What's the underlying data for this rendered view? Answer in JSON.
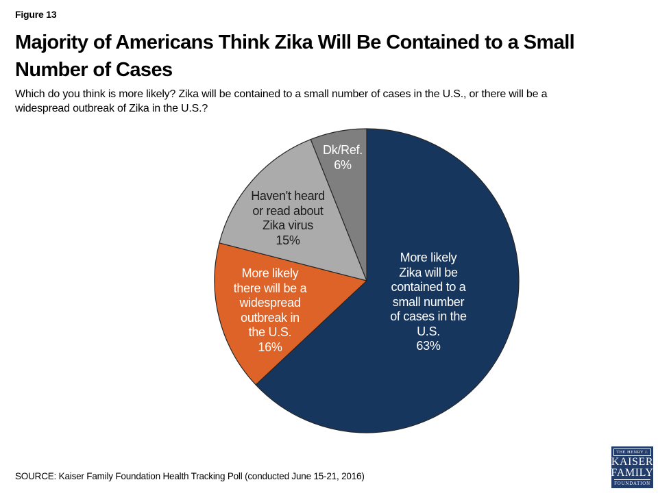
{
  "figure_label": "Figure 13",
  "title": "Majority of Americans Think Zika Will Be Contained to a Small\nNumber of Cases",
  "question": "Which do you think is more likely? Zika will be contained to a small number of cases in the U.S., or there will be a\nwidespread outbreak of Zika in the U.S.?",
  "source": "SOURCE: Kaiser Family Foundation Health Tracking Poll (conducted June 15-21, 2016)",
  "logo": {
    "line1": "THE HENRY J.",
    "line2": "KAISER",
    "line3": "FAMILY",
    "line4": "FOUNDATION",
    "bg_color": "#223C6C"
  },
  "chart_data": {
    "type": "pie",
    "title": "Majority of Americans Think Zika Will Be Contained to a Small Number of Cases",
    "categories": [
      "More likely Zika will be contained to a small number of cases in the U.S.",
      "More likely there will be a widespread outbreak in the U.S.",
      "Haven't heard or read about Zika virus",
      "Dk/Ref."
    ],
    "values": [
      63,
      16,
      15,
      6
    ],
    "unit": "%",
    "colors": [
      "#17365D",
      "#DE6328",
      "#ABABAB",
      "#7F7F7F"
    ],
    "outline_color": "#262626",
    "start_angle_deg": 0,
    "direction": "clockwise",
    "legend": "none",
    "labels_inside": true,
    "slices": [
      {
        "name": "contained-small-number",
        "label": "More likely\nZika will be\ncontained to a\nsmall number\nof cases in the\nU.S.\n63%",
        "value": 63,
        "color": "#17365D",
        "text_color": "#FFFFFF"
      },
      {
        "name": "widespread-outbreak",
        "label": "More likely\nthere will be a\nwidespread\noutbreak in\nthe U.S.\n16%",
        "value": 16,
        "color": "#DE6328",
        "text_color": "#FFFFFF"
      },
      {
        "name": "havent-heard",
        "label": "Haven't heard\nor read about\nZika virus\n15%",
        "value": 15,
        "color": "#ABABAB",
        "text_color": "#1A1A1A"
      },
      {
        "name": "dk-ref",
        "label": "Dk/Ref.\n6%",
        "value": 6,
        "color": "#7F7F7F",
        "text_color": "#FFFFFF"
      }
    ]
  }
}
